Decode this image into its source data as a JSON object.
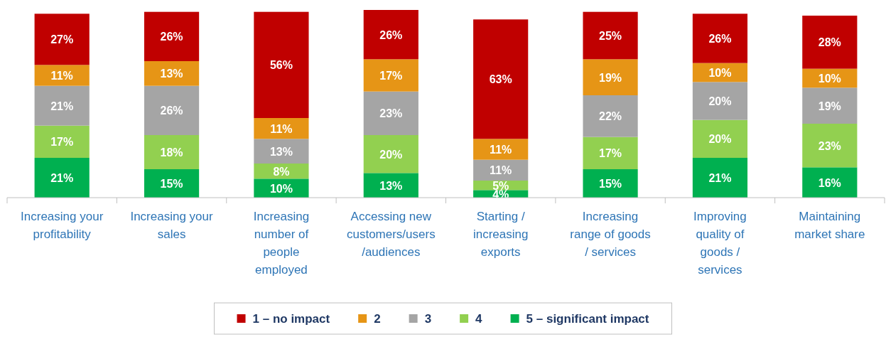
{
  "chart_data": {
    "type": "bar",
    "stacked": true,
    "legend": "bottom",
    "categories": [
      "Increasing your profitability",
      "Increasing your sales",
      "Increasing number of people employed",
      "Accessing new customers/users /audiences",
      "Starting / increasing exports",
      "Increasing range of goods / services",
      "Improving quality of goods / services",
      "Maintaining market share"
    ],
    "series": [
      {
        "name": "5 – significant impact",
        "color": "#00b050",
        "values": [
          21,
          15,
          10,
          13,
          4,
          15,
          21,
          16
        ],
        "value_labels": [
          "21%",
          "15%",
          "10%",
          "13%",
          "4%",
          "15%",
          "21%",
          "16%"
        ]
      },
      {
        "name": "4",
        "color": "#92d050",
        "values": [
          17,
          18,
          8,
          20,
          5,
          17,
          20,
          23
        ],
        "value_labels": [
          "17%",
          "18%",
          "8%",
          "20%",
          "5%",
          "17%",
          "20%",
          "23%"
        ]
      },
      {
        "name": "3",
        "color": "#a5a5a5",
        "values": [
          21,
          26,
          13,
          23,
          11,
          22,
          20,
          19
        ],
        "value_labels": [
          "21%",
          "26%",
          "13%",
          "23%",
          "11%",
          "22%",
          "20%",
          "19%"
        ]
      },
      {
        "name": "2",
        "color": "#e69516",
        "values": [
          11,
          13,
          11,
          17,
          11,
          19,
          10,
          10
        ],
        "value_labels": [
          "11%",
          "13%",
          "11%",
          "17%",
          "11%",
          "19%",
          "10%",
          "10%"
        ]
      },
      {
        "name": "1 – no impact",
        "color": "#c00000",
        "values": [
          27,
          26,
          56,
          26,
          63,
          25,
          26,
          28
        ],
        "value_labels": [
          "27%",
          "26%",
          "56%",
          "26%",
          "63%",
          "25%",
          "26%",
          "28%"
        ]
      }
    ]
  }
}
